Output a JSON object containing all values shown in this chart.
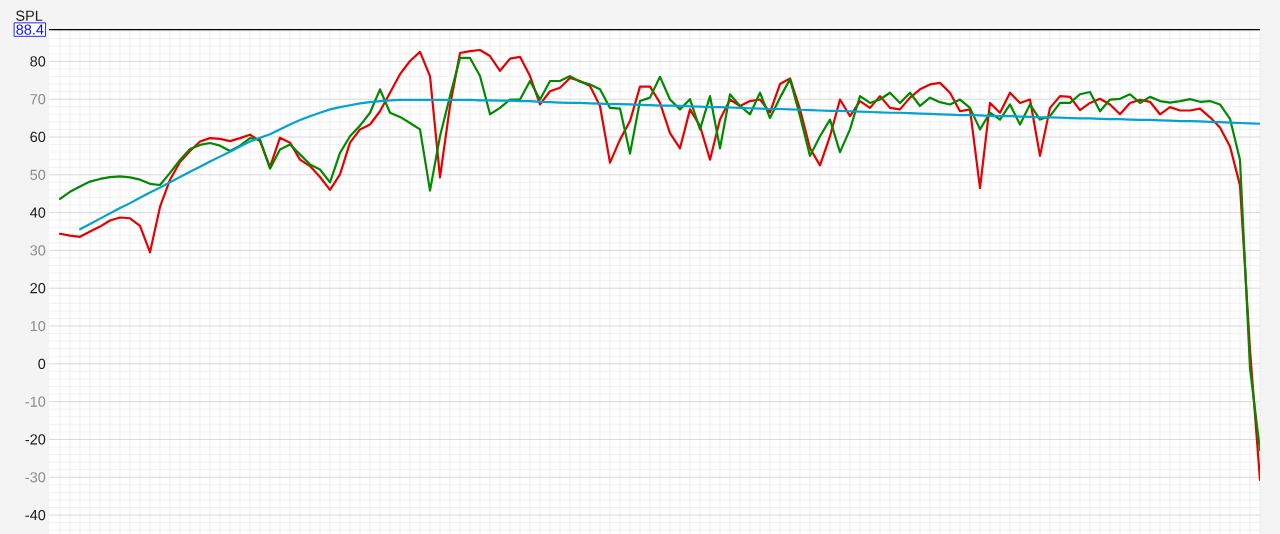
{
  "chart_data": {
    "type": "line",
    "ylabel": "SPL",
    "categories": [
      null,
      null,
      null,
      null,
      null,
      null,
      null,
      null,
      null,
      null,
      null,
      null,
      null,
      null,
      null,
      null,
      null,
      null,
      null,
      null,
      null,
      null,
      null,
      null,
      null,
      null,
      null,
      null,
      null,
      null,
      null,
      null,
      null,
      null,
      null,
      null,
      null,
      null,
      null,
      null,
      null,
      null,
      null,
      null,
      null,
      null,
      null,
      null,
      null,
      null,
      null,
      null,
      null,
      null,
      null,
      null,
      null,
      null,
      null,
      null,
      null,
      null,
      null,
      null,
      null,
      null,
      null,
      null,
      null,
      null,
      null,
      null,
      null,
      null,
      null,
      null,
      null,
      null,
      null,
      null,
      null,
      null,
      null,
      null,
      null,
      null,
      null,
      null,
      null,
      null,
      null,
      null,
      null,
      null,
      null,
      null,
      null,
      null,
      null,
      null,
      null,
      null,
      null,
      null,
      null,
      null,
      null,
      null,
      null,
      null,
      null,
      null,
      null,
      null,
      null,
      null,
      null,
      null,
      null,
      null,
      null
    ],
    "series": [
      {
        "color": "#e60000",
        "values": [
          34.4,
          33.9,
          33.6,
          35.0,
          36.3,
          37.9,
          38.7,
          38.5,
          36.5,
          29.5,
          41.5,
          48.7,
          53.4,
          56.3,
          58.8,
          59.7,
          59.5,
          58.9,
          59.7,
          60.6,
          58.9,
          52.0,
          59.8,
          58.5,
          54.0,
          52.3,
          49.4,
          46.0,
          50.1,
          58.5,
          62.0,
          63.3,
          66.8,
          71.7,
          76.6,
          80.1,
          82.5,
          76.1,
          49.3,
          68.2,
          82.2,
          82.7,
          83.0,
          81.4,
          77.5,
          80.7,
          81.2,
          76.1,
          68.6,
          72.1,
          73.0,
          75.6,
          74.8,
          73.5,
          68.2,
          53.2,
          59.3,
          64.2,
          73.3,
          73.3,
          69.0,
          61.0,
          57.0,
          67.3,
          62.9,
          54.0,
          64.6,
          69.9,
          68.2,
          69.5,
          69.9,
          66.5,
          74.0,
          75.5,
          67.3,
          57.0,
          52.5,
          60.2,
          69.9,
          65.5,
          69.5,
          67.7,
          70.8,
          67.7,
          67.3,
          70.4,
          72.6,
          73.9,
          74.3,
          71.7,
          66.8,
          67.3,
          46.5,
          69.0,
          66.4,
          71.7,
          69.0,
          69.9,
          55.0,
          67.7,
          70.8,
          70.6,
          67.1,
          69.0,
          70.1,
          68.6,
          66.0,
          69.0,
          69.8,
          69.3,
          66.0,
          67.9,
          67.0,
          67.0,
          67.5,
          65.2,
          62.5,
          57.5,
          47.2,
          3.7,
          -30.7
        ]
      },
      {
        "color": "#008a00",
        "values": [
          43.6,
          45.5,
          46.9,
          48.2,
          48.9,
          49.4,
          49.6,
          49.3,
          48.7,
          47.6,
          47.3,
          50.5,
          53.9,
          56.8,
          57.9,
          58.4,
          57.7,
          56.3,
          57.7,
          59.7,
          59.3,
          51.6,
          56.7,
          58.0,
          55.4,
          52.7,
          51.4,
          48.0,
          55.8,
          60.2,
          63.0,
          66.4,
          72.6,
          66.4,
          65.3,
          63.7,
          62.0,
          45.8,
          60.2,
          70.8,
          80.9,
          80.9,
          76.1,
          66.0,
          67.7,
          69.9,
          69.9,
          74.8,
          69.9,
          74.8,
          74.8,
          76.1,
          74.6,
          73.9,
          72.6,
          67.7,
          67.5,
          55.6,
          69.5,
          70.4,
          75.9,
          69.9,
          67.3,
          70.0,
          62.0,
          70.8,
          57.0,
          71.3,
          68.2,
          66.0,
          71.7,
          65.0,
          70.4,
          75.3,
          65.5,
          55.0,
          60.2,
          64.6,
          56.0,
          62.0,
          70.8,
          69.0,
          69.9,
          71.7,
          69.0,
          71.7,
          68.2,
          70.4,
          69.2,
          68.6,
          69.9,
          67.7,
          62.0,
          66.4,
          64.6,
          68.6,
          63.3,
          68.6,
          64.6,
          65.5,
          69.0,
          69.0,
          71.3,
          71.9,
          66.8,
          69.9,
          70.1,
          71.3,
          69.0,
          70.6,
          69.5,
          69.1,
          69.5,
          70.0,
          69.3,
          69.5,
          68.6,
          64.8,
          53.9,
          -1.2,
          -22.9
        ]
      },
      {
        "color": "#00a3d4",
        "values": [
          null,
          null,
          35.6,
          37.0,
          38.4,
          39.8,
          41.2,
          42.5,
          43.9,
          45.3,
          46.6,
          48.0,
          49.4,
          50.8,
          52.1,
          53.5,
          54.8,
          56.1,
          57.5,
          58.8,
          59.8,
          60.7,
          62.0,
          63.3,
          64.5,
          65.5,
          66.4,
          67.3,
          67.9,
          68.4,
          68.9,
          69.2,
          69.5,
          69.7,
          69.8,
          69.8,
          69.8,
          69.8,
          69.8,
          69.8,
          69.8,
          69.8,
          69.7,
          69.7,
          69.6,
          69.6,
          69.5,
          69.5,
          69.3,
          69.2,
          69.1,
          69.0,
          69.0,
          68.9,
          68.8,
          68.7,
          68.7,
          68.6,
          68.5,
          68.4,
          68.3,
          68.3,
          68.2,
          68.1,
          68.0,
          67.9,
          67.9,
          67.8,
          67.7,
          67.6,
          67.5,
          67.4,
          67.4,
          67.3,
          67.2,
          67.1,
          67.0,
          66.9,
          66.9,
          66.8,
          66.7,
          66.6,
          66.5,
          66.4,
          66.4,
          66.3,
          66.2,
          66.1,
          66.0,
          65.9,
          65.8,
          65.8,
          65.7,
          65.6,
          65.5,
          65.5,
          65.4,
          65.3,
          65.2,
          65.2,
          65.1,
          65.0,
          64.9,
          64.9,
          64.8,
          64.7,
          64.7,
          64.6,
          64.5,
          64.5,
          64.4,
          64.3,
          64.2,
          64.2,
          64.1,
          64.0,
          63.9,
          63.8,
          63.7,
          63.6,
          63.5
        ]
      }
    ],
    "ylim": [
      -45,
      88.4
    ],
    "yticks": [
      -40,
      -30,
      -20,
      -10,
      0,
      10,
      20,
      30,
      40,
      50,
      60,
      70,
      80,
      88.4
    ],
    "grid": true
  }
}
